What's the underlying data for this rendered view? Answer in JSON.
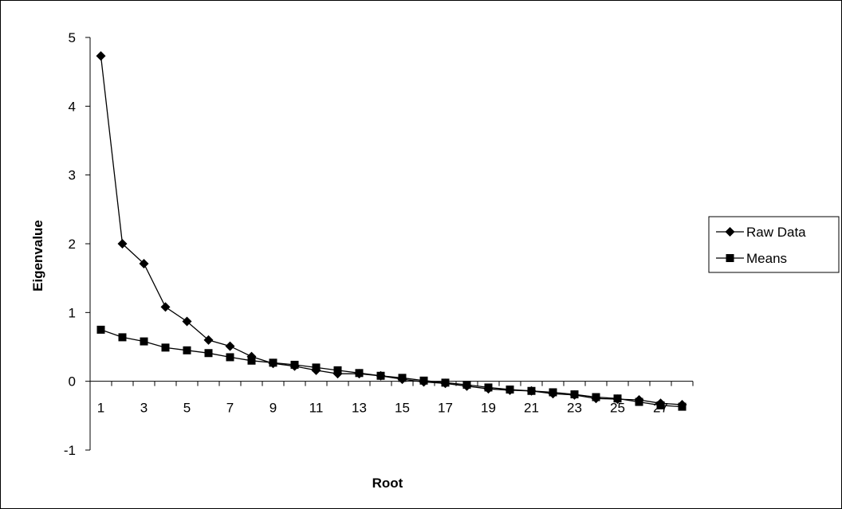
{
  "chart_data": {
    "type": "line",
    "title": "",
    "xlabel": "Root",
    "ylabel": "Eigenvalue",
    "ylim": [
      -1,
      5
    ],
    "yticks": [
      5,
      4,
      3,
      2,
      1,
      0,
      -1
    ],
    "x": [
      1,
      2,
      3,
      4,
      5,
      6,
      7,
      8,
      9,
      10,
      11,
      12,
      13,
      14,
      15,
      16,
      17,
      18,
      19,
      20,
      21,
      22,
      23,
      24,
      25,
      26,
      27,
      28
    ],
    "xtick_labels": [
      "1",
      "3",
      "5",
      "7",
      "9",
      "11",
      "13",
      "15",
      "17",
      "19",
      "21",
      "23",
      "25",
      "27"
    ],
    "grid": false,
    "legend_position": "right",
    "series": [
      {
        "name": "Raw Data",
        "marker": "diamond",
        "color": "#000000",
        "values": [
          4.73,
          2.0,
          1.71,
          1.08,
          0.87,
          0.6,
          0.51,
          0.36,
          0.26,
          0.22,
          0.16,
          0.11,
          0.11,
          0.08,
          0.03,
          -0.01,
          -0.03,
          -0.07,
          -0.11,
          -0.13,
          -0.14,
          -0.18,
          -0.2,
          -0.25,
          -0.26,
          -0.27,
          -0.32,
          -0.34
        ]
      },
      {
        "name": "Means",
        "marker": "square",
        "color": "#000000",
        "values": [
          0.75,
          0.64,
          0.58,
          0.49,
          0.45,
          0.41,
          0.35,
          0.3,
          0.27,
          0.24,
          0.2,
          0.16,
          0.12,
          0.08,
          0.05,
          0.01,
          -0.02,
          -0.05,
          -0.09,
          -0.12,
          -0.14,
          -0.16,
          -0.19,
          -0.23,
          -0.25,
          -0.3,
          -0.35,
          -0.37
        ]
      }
    ]
  }
}
